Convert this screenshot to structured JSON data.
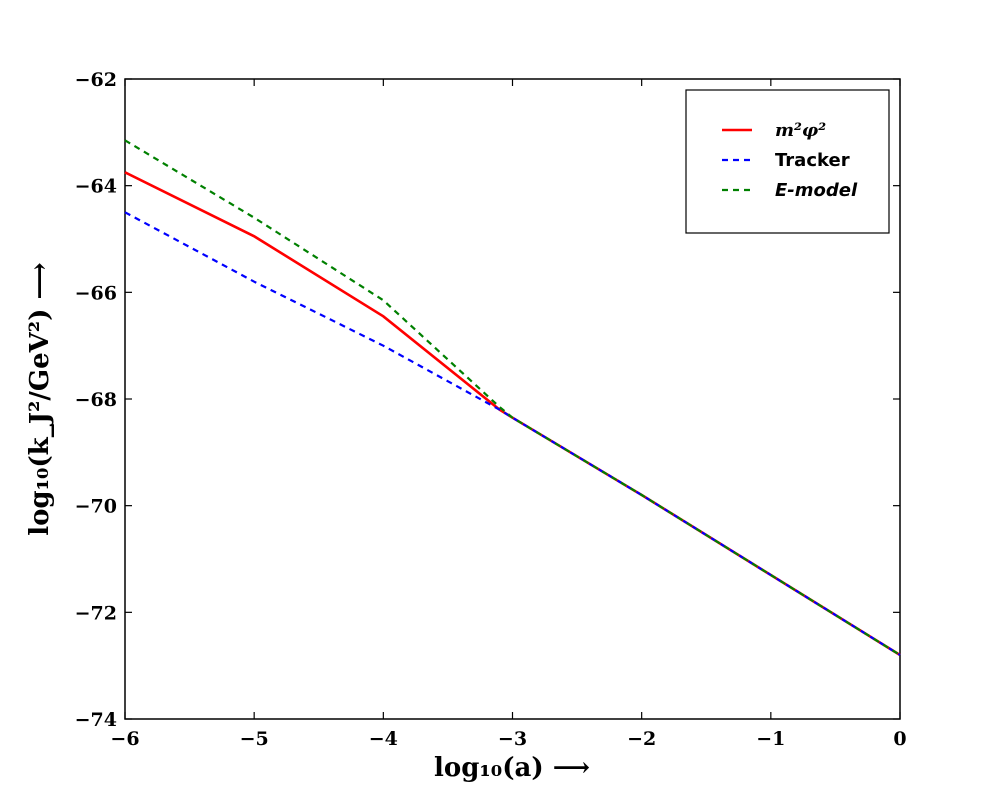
{
  "chart_data": {
    "type": "line",
    "xlabel": "log₁₀(a) ⟶",
    "ylabel": "log₁₀(k_J²/GeV²) ⟶",
    "xlim": [
      -6,
      0
    ],
    "ylim": [
      -74,
      -62
    ],
    "x_ticks": [
      -6,
      -5,
      -4,
      -3,
      -2,
      -1,
      0
    ],
    "y_ticks": [
      -74,
      -72,
      -70,
      -68,
      -66,
      -64,
      -62
    ],
    "x_tick_labels": [
      "−6",
      "−5",
      "−4",
      "−3",
      "−2",
      "−1",
      "0"
    ],
    "y_tick_labels": [
      "−74",
      "−72",
      "−70",
      "−68",
      "−66",
      "−64",
      "−62"
    ],
    "grid": false,
    "legend_position": "top-right",
    "series": [
      {
        "name": "m²φ²",
        "color": "#ff0000",
        "style": "solid",
        "x": [
          -6,
          -5,
          -4,
          -3.1,
          -3,
          -2,
          -1,
          0
        ],
        "y": [
          -63.75,
          -64.95,
          -66.45,
          -68.2,
          -68.35,
          -69.8,
          -71.3,
          -72.8
        ]
      },
      {
        "name": "Tracker",
        "color": "#0000ff",
        "style": "dashed",
        "x": [
          -6,
          -5,
          -4,
          -3.1,
          -3,
          -2,
          -1,
          0
        ],
        "y": [
          -64.5,
          -65.8,
          -67.0,
          -68.2,
          -68.35,
          -69.8,
          -71.3,
          -72.8
        ]
      },
      {
        "name": "E-model",
        "color": "#008000",
        "style": "dashed",
        "x": [
          -6,
          -5,
          -4,
          -3.1,
          -3,
          -2,
          -1,
          0
        ],
        "y": [
          -63.15,
          -64.6,
          -66.15,
          -68.15,
          -68.35,
          -69.8,
          -71.3,
          -72.8
        ]
      }
    ]
  }
}
